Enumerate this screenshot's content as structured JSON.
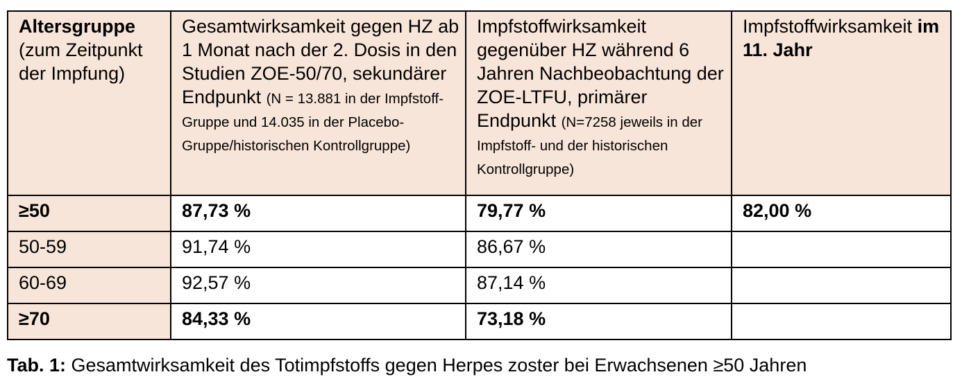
{
  "table": {
    "header": {
      "col1_bold": "Altersgruppe",
      "col1_rest": "(zum Zeitpunkt der Impfung)",
      "col2_main": "Gesamtwirksamkeit gegen HZ ab 1 Monat nach der 2. Dosis in den Studien ZOE-50/70, sekundärer Endpunkt",
      "col2_small": "(N = 13.881 in der Impfstoff-Gruppe und 14.035 in der Placebo-Gruppe/historischen Kontrollgruppe)",
      "col3_main": "Impfstoffwirksamkeit gegenüber HZ während 6 Jahren Nachbeobachtung der ZOE-LTFU, primärer Endpunkt",
      "col3_small": "(N=7258 jeweils in der Impfstoff- und der historischen Kontrollgruppe)",
      "col4_main": "Impfstoffwirksamkeit",
      "col4_bold": "im 11. Jahr"
    },
    "rows": [
      {
        "age": "≥50",
        "c2": "87,73 %",
        "c3": "79,77 %",
        "c4": "82,00 %"
      },
      {
        "age": "50-59",
        "c2": "91,74 %",
        "c3": "86,67 %",
        "c4": ""
      },
      {
        "age": "60-69",
        "c2": "92,57 %",
        "c3": "87,14 %",
        "c4": ""
      },
      {
        "age": "≥70",
        "c2": "84,33 %",
        "c3": "73,18 %",
        "c4": ""
      }
    ]
  },
  "caption": {
    "label": "Tab. 1:",
    "text": " Gesamtwirksamkeit des Totimpfstoffs gegen Herpes zoster bei Erwachsenen ≥50 Jahren"
  },
  "colors": {
    "header_bg": "#f8e5da",
    "border": "#000000"
  }
}
